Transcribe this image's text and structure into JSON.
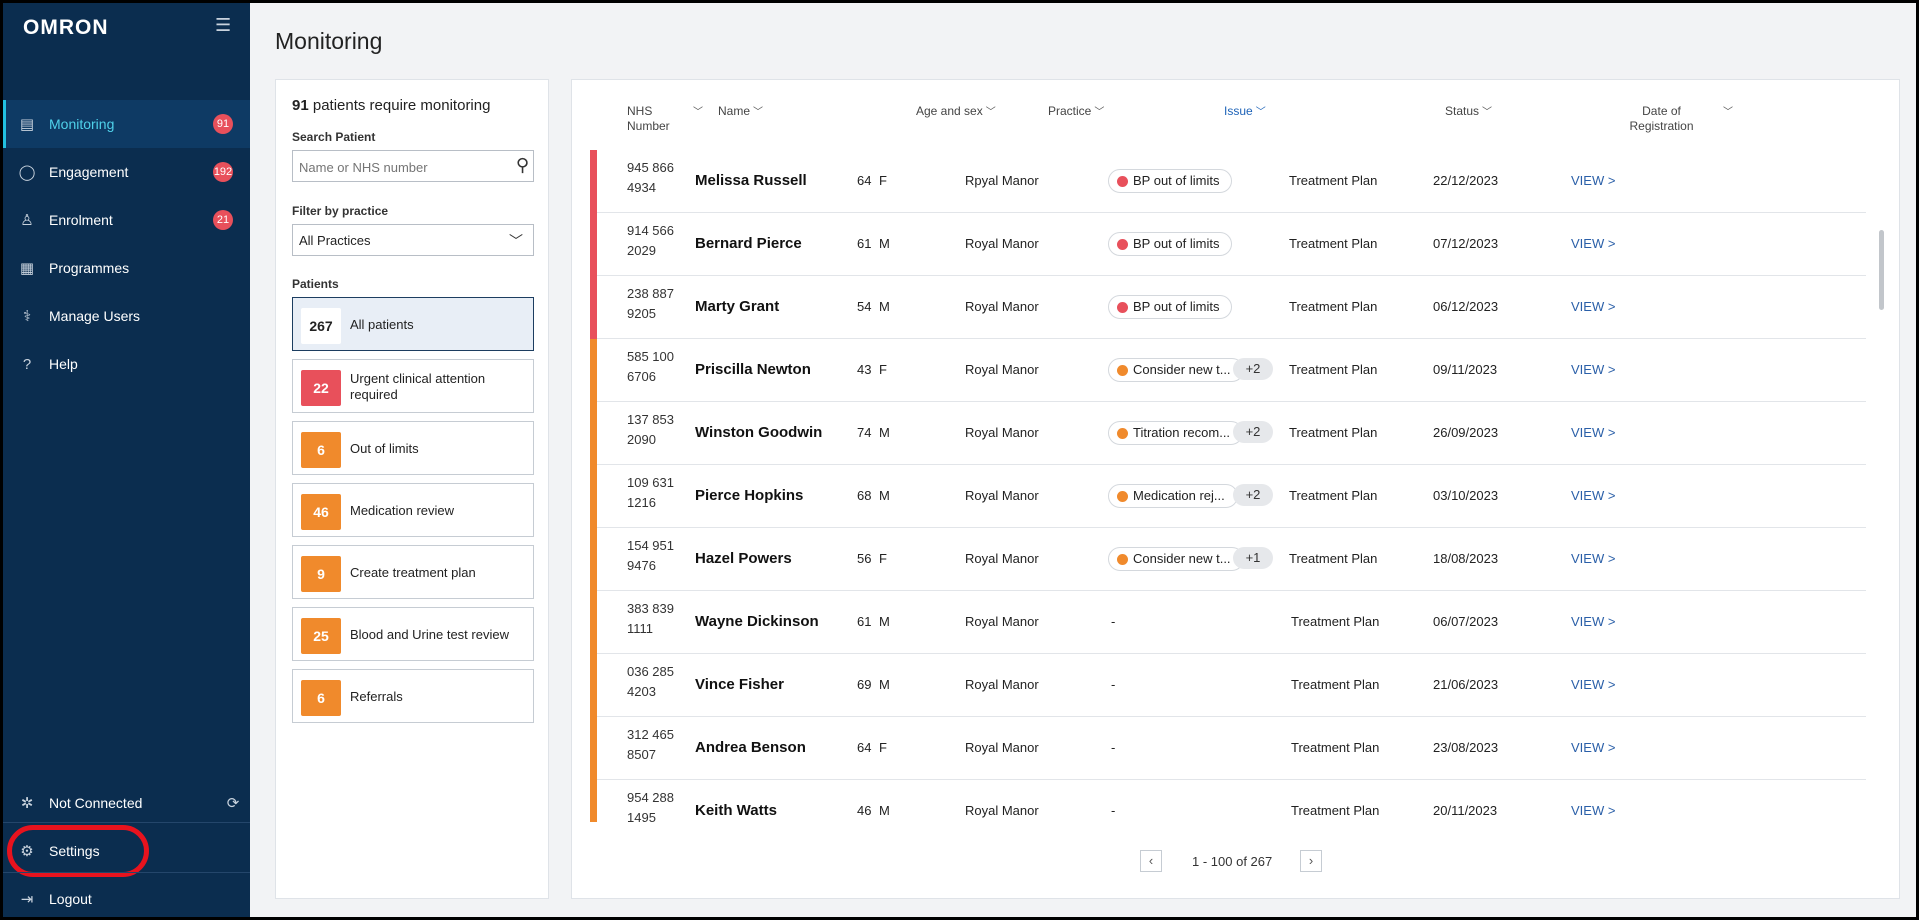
{
  "app": {
    "logo": "OMRON",
    "menu_icon": "hamburger-icon"
  },
  "sidebar": {
    "items": [
      {
        "label": "Monitoring",
        "badge": "91",
        "icon": "clipboard-icon",
        "active": true
      },
      {
        "label": "Engagement",
        "badge": "192",
        "icon": "chat-icon"
      },
      {
        "label": "Enrolment",
        "badge": "21",
        "icon": "person-add-icon"
      },
      {
        "label": "Programmes",
        "badge": "",
        "icon": "document-icon"
      },
      {
        "label": "Manage Users",
        "badge": "",
        "icon": "stethoscope-icon"
      },
      {
        "label": "Help",
        "badge": "",
        "icon": "question-icon"
      }
    ],
    "bottom": {
      "connection": "Not Connected",
      "settings": "Settings",
      "logout": "Logout"
    }
  },
  "page": {
    "title": "Monitoring"
  },
  "filters": {
    "count": "91",
    "count_suffix": " patients require monitoring",
    "search_label": "Search Patient",
    "search_placeholder": "Name or NHS number",
    "practice_label": "Filter by practice",
    "practice_value": "All Practices",
    "patients_label": "Patients",
    "categories": [
      {
        "count": "267",
        "label": "All patients",
        "color": "#ffffff",
        "selected": true
      },
      {
        "count": "22",
        "label": "Urgent clinical attention required",
        "color": "#e8505b"
      },
      {
        "count": "6",
        "label": "Out of limits",
        "color": "#f08a2c"
      },
      {
        "count": "46",
        "label": "Medication review",
        "color": "#f08a2c"
      },
      {
        "count": "9",
        "label": "Create treatment plan",
        "color": "#f08a2c"
      },
      {
        "count": "25",
        "label": "Blood and Urine test review",
        "color": "#f08a2c"
      },
      {
        "count": "6",
        "label": "Referrals",
        "color": "#f08a2c"
      }
    ]
  },
  "table": {
    "headers": {
      "nhs": "NHS Number",
      "name": "Name",
      "age": "Age and sex",
      "practice": "Practice",
      "issue": "Issue",
      "status": "Status",
      "date": "Date of Registration"
    },
    "view_label": "VIEW >",
    "rows": [
      {
        "nhs": "945 866 4934",
        "name": "Melissa Russell",
        "age": "64",
        "sex": "F",
        "practice": "Rpyal Manor",
        "issue": "BP out of limits",
        "issue_color": "#e8505b",
        "extra": "",
        "status": "Treatment Plan",
        "date": "22/12/2023",
        "bar": "#e8505b"
      },
      {
        "nhs": "914 566 2029",
        "name": "Bernard Pierce",
        "age": "61",
        "sex": "M",
        "practice": "Royal Manor",
        "issue": "BP out of limits",
        "issue_color": "#e8505b",
        "extra": "",
        "status": "Treatment Plan",
        "date": "07/12/2023",
        "bar": "#e8505b"
      },
      {
        "nhs": "238 887 9205",
        "name": "Marty Grant",
        "age": "54",
        "sex": "M",
        "practice": "Royal Manor",
        "issue": "BP out of limits",
        "issue_color": "#e8505b",
        "extra": "",
        "status": "Treatment Plan",
        "date": "06/12/2023",
        "bar": "#e8505b"
      },
      {
        "nhs": "585 100 6706",
        "name": "Priscilla Newton",
        "age": "43",
        "sex": "F",
        "practice": "Royal Manor",
        "issue": "Consider new t...",
        "issue_color": "#f08a2c",
        "extra": "+2",
        "status": "Treatment Plan",
        "date": "09/11/2023",
        "bar": "#f08a2c"
      },
      {
        "nhs": "137 853 2090",
        "name": "Winston Goodwin",
        "age": "74",
        "sex": "M",
        "practice": "Royal Manor",
        "issue": "Titration recom...",
        "issue_color": "#f08a2c",
        "extra": "+2",
        "status": "Treatment Plan",
        "date": "26/09/2023",
        "bar": "#f08a2c"
      },
      {
        "nhs": "109 631 1216",
        "name": "Pierce Hopkins",
        "age": "68",
        "sex": "M",
        "practice": "Royal Manor",
        "issue": "Medication rej...",
        "issue_color": "#f08a2c",
        "extra": "+2",
        "status": "Treatment Plan",
        "date": "03/10/2023",
        "bar": "#f08a2c"
      },
      {
        "nhs": "154 951 9476",
        "name": "Hazel Powers",
        "age": "56",
        "sex": "F",
        "practice": "Royal Manor",
        "issue": "Consider new t...",
        "issue_color": "#f08a2c",
        "extra": "+1",
        "status": "Treatment Plan",
        "date": "18/08/2023",
        "bar": "#f08a2c"
      },
      {
        "nhs": "383 839 1111",
        "name": "Wayne Dickinson",
        "age": "61",
        "sex": "M",
        "practice": "Royal Manor",
        "issue": "-",
        "issue_color": "",
        "extra": "",
        "status": "Treatment Plan",
        "date": "06/07/2023",
        "bar": "#f08a2c"
      },
      {
        "nhs": "036 285 4203",
        "name": "Vince Fisher",
        "age": "69",
        "sex": "M",
        "practice": "Royal Manor",
        "issue": "-",
        "issue_color": "",
        "extra": "",
        "status": "Treatment Plan",
        "date": "21/06/2023",
        "bar": "#f08a2c"
      },
      {
        "nhs": "312 465 8507",
        "name": "Andrea Benson",
        "age": "64",
        "sex": "F",
        "practice": "Royal Manor",
        "issue": "-",
        "issue_color": "",
        "extra": "",
        "status": "Treatment Plan",
        "date": "23/08/2023",
        "bar": "#f08a2c"
      },
      {
        "nhs": "954 288 1495",
        "name": "Keith Watts",
        "age": "46",
        "sex": "M",
        "practice": "Royal Manor",
        "issue": "-",
        "issue_color": "",
        "extra": "",
        "status": "Treatment Plan",
        "date": "20/11/2023",
        "bar": "#f08a2c"
      }
    ],
    "pagination": "1 - 100 of 267"
  }
}
